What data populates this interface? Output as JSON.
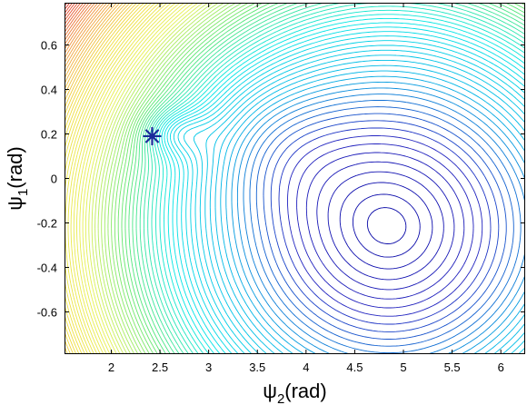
{
  "chart_data": {
    "type": "contour",
    "xlabel_symbol": "ψ",
    "xlabel_sub": "2",
    "xlabel_unit": "(rad)",
    "ylabel_symbol": "ψ",
    "ylabel_sub": "1",
    "ylabel_unit": "(rad)",
    "xlim": [
      1.52,
      6.25
    ],
    "ylim": [
      -0.79,
      0.79
    ],
    "xticks": [
      {
        "value": 2,
        "label": "2"
      },
      {
        "value": 2.5,
        "label": "2.5"
      },
      {
        "value": 3,
        "label": "3"
      },
      {
        "value": 3.5,
        "label": "3.5"
      },
      {
        "value": 4,
        "label": "4"
      },
      {
        "value": 4.5,
        "label": "4.5"
      },
      {
        "value": 5,
        "label": "5"
      },
      {
        "value": 5.5,
        "label": "5.5"
      },
      {
        "value": 6,
        "label": "6"
      }
    ],
    "yticks": [
      {
        "value": 0.6,
        "label": "0.6"
      },
      {
        "value": 0.4,
        "label": "0.4"
      },
      {
        "value": 0.2,
        "label": "0.2"
      },
      {
        "value": 0,
        "label": "0"
      },
      {
        "value": -0.2,
        "label": "-0.2"
      },
      {
        "value": -0.4,
        "label": "-0.4"
      },
      {
        "value": -0.6,
        "label": "-0.6"
      }
    ],
    "global_minimum": {
      "x": 4.85,
      "y": -0.22
    },
    "local_minimum": {
      "x": 2.62,
      "y": 0.21
    },
    "marker": {
      "x": 2.42,
      "y": 0.19,
      "symbol": "asterisk",
      "color": "#1a2a9a"
    },
    "contour_levels": 90,
    "colormap": [
      "#0000a0",
      "#2222c0",
      "#00b4e6",
      "#00e6e6",
      "#5ae66e",
      "#e6f050",
      "#f0dc3c",
      "#f0963c",
      "#dc2828"
    ]
  }
}
